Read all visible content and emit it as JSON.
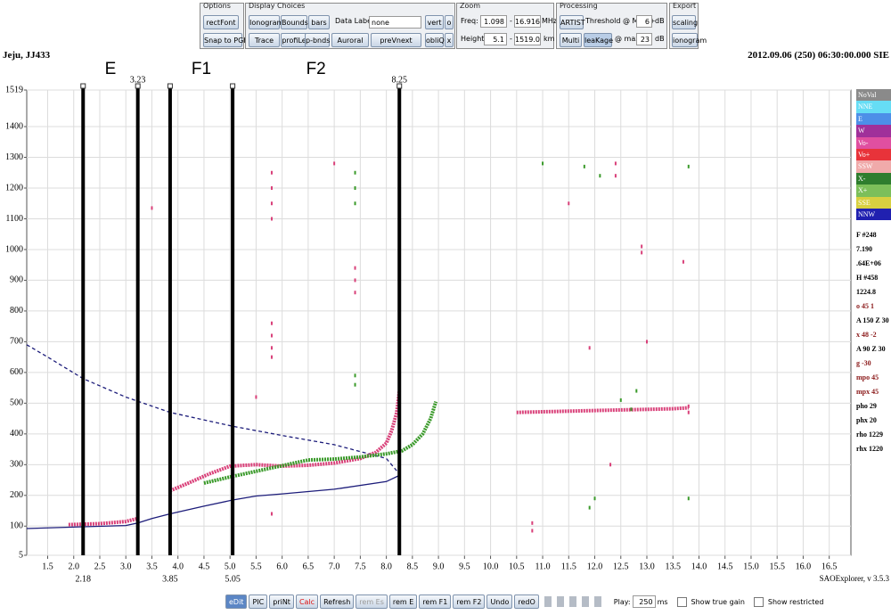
{
  "toolbar": {
    "options": {
      "title": "Options",
      "buttons": [
        "rectFont",
        "Snap to PGH"
      ]
    },
    "display": {
      "title": "Display Choices",
      "buttons": [
        "Ionogram",
        "Bounds",
        "bars",
        "Trace",
        "profiLe",
        "p-bnds",
        "Auroral",
        "preVnext",
        "vert",
        "o",
        "obliQ",
        "x"
      ],
      "data_labels_label": "Data Labels:",
      "data_labels_value": "none"
    },
    "zoom": {
      "title": "Zoom",
      "freq_label": "Freq:",
      "freq_min": "1.098",
      "freq_max": "16.916",
      "freq_unit": "MHz",
      "height_label": "Height:",
      "height_min": "5.1",
      "height_max": "1519.0",
      "height_unit": "km",
      "separator": "-"
    },
    "processing": {
      "title": "Processing",
      "buttons": [
        "ARTIST",
        "Multi",
        "leaKage"
      ],
      "threshold_label": "Threshold @ MPA +",
      "threshold_value": "6",
      "max_label": "@ max -",
      "max_value": "23",
      "unit": "dB"
    },
    "export": {
      "title": "Export",
      "buttons": [
        "scaling",
        "ionogram"
      ]
    }
  },
  "station": "Jeju, JJ433",
  "timestamp": "2012.09.06 (250) 06:30:00.000 SIE",
  "chart_data": {
    "type": "scatter",
    "xlim": [
      1.098,
      16.916
    ],
    "ylim": [
      5.1,
      1519
    ],
    "grid": true,
    "xticks": [
      1.5,
      {
        "value": 2,
        "label": "2.0"
      },
      2.5,
      {
        "value": 3,
        "label": "3.0"
      },
      3.5,
      {
        "value": 4,
        "label": "4.0"
      },
      4.5,
      {
        "value": 5,
        "label": "5.0"
      },
      5.5,
      {
        "value": 6,
        "label": "6.0"
      },
      6.5,
      {
        "value": 7,
        "label": "7.0"
      },
      7.5,
      {
        "value": 8,
        "label": "8.0"
      },
      8.5,
      {
        "value": 9,
        "label": "9.0"
      },
      9.5,
      {
        "value": 10,
        "label": "10.0"
      },
      10.5,
      {
        "value": 11,
        "label": "11.0"
      },
      11.5,
      {
        "value": 12,
        "label": "12.0"
      },
      12.5,
      {
        "value": 13,
        "label": "13.0"
      },
      13.5,
      {
        "value": 14,
        "label": "14.0"
      },
      14.5,
      {
        "value": 15,
        "label": "15.0"
      },
      15.5,
      {
        "value": 16,
        "label": "16.0"
      },
      16.5
    ],
    "yticks": [
      {
        "value": 5.1,
        "label": "5"
      },
      100,
      200,
      300,
      400,
      500,
      600,
      700,
      800,
      900,
      1000,
      1100,
      1200,
      1300,
      1400,
      1519
    ],
    "boundaries": [
      {
        "value": 2.18,
        "label_position": "bottom"
      },
      {
        "value": 3.23,
        "label_position": "top"
      },
      {
        "value": 3.85,
        "label_position": "bottom"
      },
      {
        "value": 5.05,
        "label_position": "bottom"
      },
      {
        "value": 8.25,
        "label_position": "top"
      }
    ],
    "layers": [
      "E",
      "F1",
      "F2"
    ],
    "series": [
      {
        "mode": "line",
        "color": "#1c1c7a",
        "dash": false,
        "x": [
          1.098,
          2.18,
          3.0,
          3.23,
          3.5,
          3.85,
          4.5,
          5.05,
          5.5,
          6.0,
          7.0,
          8.0,
          8.25
        ],
        "values": [
          92,
          98,
          102,
          110,
          125,
          140,
          165,
          185,
          198,
          205,
          220,
          245,
          265
        ]
      },
      {
        "mode": "line",
        "color": "#1c1c7a",
        "dash": true,
        "x": [
          1.098,
          1.5,
          2.18,
          3.0,
          3.85,
          5.05,
          6.0,
          7.0,
          8.0,
          8.25
        ],
        "values": [
          690,
          650,
          580,
          520,
          470,
          425,
          395,
          365,
          320,
          270
        ]
      },
      {
        "mode": "trace",
        "color": "#d94079",
        "dash": false,
        "x": [
          1.9,
          2.5,
          3.0,
          3.23
        ],
        "values": [
          105,
          108,
          115,
          125
        ]
      },
      {
        "mode": "trace",
        "color": "#d94079",
        "dash": false,
        "x": [
          3.85,
          4.2,
          4.6,
          5.0,
          5.5,
          6.0,
          6.5,
          7.0,
          7.5,
          7.8,
          8.0,
          8.1,
          8.2,
          8.25
        ],
        "values": [
          215,
          240,
          270,
          295,
          300,
          295,
          298,
          305,
          320,
          340,
          370,
          410,
          470,
          540
        ]
      },
      {
        "mode": "trace",
        "color": "#3a9a2a",
        "dash": false,
        "x": [
          4.5,
          5.0,
          6.5,
          7.0,
          7.5,
          8.0,
          8.3,
          8.5,
          8.7,
          8.85,
          8.95
        ],
        "values": [
          240,
          260,
          315,
          318,
          325,
          335,
          345,
          365,
          400,
          450,
          505
        ]
      },
      {
        "mode": "trace",
        "color": "#d94079",
        "dash": false,
        "x": [
          10.5,
          11.0,
          11.5,
          12.0,
          12.5,
          13.0,
          13.5,
          13.8
        ],
        "values": [
          470,
          472,
          474,
          476,
          478,
          480,
          482,
          485
        ]
      },
      {
        "mode": "markers",
        "color": "#d94079",
        "dash": false,
        "x": [
          5.8,
          5.8,
          5.8,
          5.8,
          5.8,
          5.8,
          5.8,
          5.8,
          5.8,
          7.4,
          7.4,
          7.4,
          7.0,
          11.5,
          12.4,
          12.4,
          12.9,
          12.9,
          13.0,
          13.8,
          13.8,
          13.7,
          10.8,
          10.8,
          11.9,
          12.3,
          3.5,
          5.5
        ],
        "values": [
          1250,
          1200,
          1150,
          1100,
          760,
          720,
          680,
          650,
          140,
          940,
          900,
          860,
          1280,
          1150,
          1280,
          1240,
          1010,
          990,
          700,
          490,
          470,
          960,
          110,
          85,
          680,
          300,
          1135,
          520
        ]
      },
      {
        "mode": "markers",
        "color": "#3a9a2a",
        "dash": false,
        "x": [
          7.4,
          7.4,
          7.4,
          7.4,
          7.4,
          11.0,
          11.8,
          12.1,
          12.0,
          11.9,
          13.8,
          13.8,
          12.8,
          12.5,
          12.7
        ],
        "values": [
          1250,
          1200,
          1150,
          590,
          560,
          1280,
          1270,
          1240,
          190,
          160,
          1270,
          190,
          540,
          510,
          480
        ]
      }
    ]
  },
  "side_panel": {
    "legend": [
      {
        "name": "NoVal",
        "color": "#8a8a8a"
      },
      {
        "name": "NNE",
        "color": "#66ddf5"
      },
      {
        "name": "E",
        "color": "#4d8fe8"
      },
      {
        "name": "W",
        "color": "#a0309a"
      },
      {
        "name": "Vo-",
        "color": "#e04fa0"
      },
      {
        "name": "Vo+",
        "color": "#e8333a"
      },
      {
        "name": "SSW",
        "color": "#f0aaaa"
      },
      {
        "name": "X-",
        "color": "#2e7d2e"
      },
      {
        "name": "X+",
        "color": "#7cbf5a"
      },
      {
        "name": "SSE",
        "color": "#d8d040"
      },
      {
        "name": "NNW",
        "color": "#2020b0"
      }
    ],
    "parameters": [
      {
        "text": "F #248",
        "color": "#000000"
      },
      {
        "text": "7.190",
        "color": "#000000"
      },
      {
        "text": ".64E+06",
        "color": "#000000"
      },
      {
        "text": "H #458",
        "color": "#000000"
      },
      {
        "text": "1224.8",
        "color": "#000000"
      },
      {
        "text": "o 45 1",
        "color": "#8b1a1a"
      },
      {
        "text": "A 150 Z 30",
        "color": "#000000"
      },
      {
        "text": "x 48 -2",
        "color": "#8b1a1a"
      },
      {
        "text": "A 90 Z 30",
        "color": "#000000"
      },
      {
        "text": "g -30",
        "color": "#8b1a1a"
      },
      {
        "text": "mpo 45",
        "color": "#8b1a1a"
      },
      {
        "text": "mpx 45",
        "color": "#8b1a1a"
      },
      {
        "text": "pho 29",
        "color": "#000000"
      },
      {
        "text": "phx 20",
        "color": "#000000"
      },
      {
        "text": "rho 1229",
        "color": "#000000"
      },
      {
        "text": "rhx 1220",
        "color": "#000000"
      }
    ]
  },
  "footer": {
    "version": "SAOExplorer, v 3.5.3",
    "buttons": [
      "eDit",
      "PIC",
      "priNt",
      "Calc",
      "Refresh",
      "rem Es",
      "rem E",
      "rem F1",
      "rem F2",
      "Undo",
      "redO"
    ],
    "play_label": "Play:",
    "play_value": "250",
    "play_unit": "ms",
    "checkboxes": [
      "Show true gain",
      "Show restricted"
    ]
  }
}
